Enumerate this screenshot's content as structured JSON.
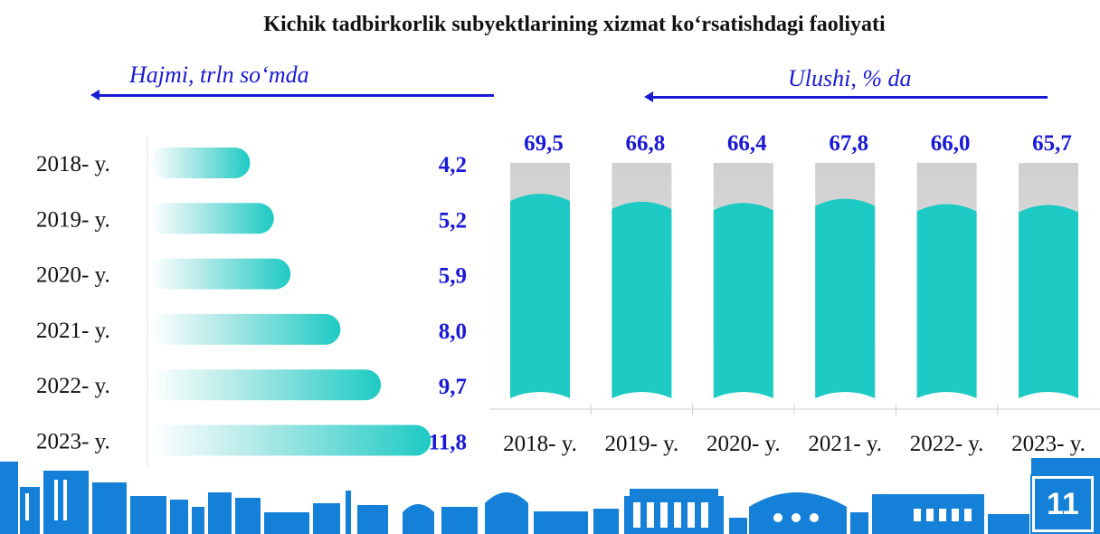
{
  "colors": {
    "teal": "#1ecac4",
    "gray": "#d9d9d9",
    "blue": "#1a1ad6",
    "city": "#1580d8"
  },
  "chart_data": [
    {
      "type": "bar",
      "orientation": "horizontal",
      "title": "Kichik tadbirkorlik subyektlarining xizmat ko‘rsatishdagi faoliyati",
      "xlabel": "Hajmi, trln so‘mda",
      "categories": [
        "2018- y.",
        "2019- y.",
        "2020- y.",
        "2021- y.",
        "2022- y.",
        "2023- y."
      ],
      "values": [
        4.2,
        5.2,
        5.9,
        8.0,
        9.7,
        11.8
      ],
      "value_labels": [
        "4,2",
        "5,2",
        "5,9",
        "8,0",
        "9,7",
        "11,8"
      ],
      "xlim": [
        0,
        12
      ]
    },
    {
      "type": "bar",
      "orientation": "vertical",
      "ylabel": "Ulushi, % da",
      "categories": [
        "2018- y.",
        "2019- y.",
        "2020- y.",
        "2021- y.",
        "2022- y.",
        "2023- y."
      ],
      "values": [
        69.5,
        66.8,
        66.4,
        67.8,
        66.0,
        65.7
      ],
      "value_labels": [
        "69,5",
        "66,8",
        "66,4",
        "67,8",
        "66,0",
        "65,7"
      ],
      "ylim": [
        0,
        80
      ]
    }
  ],
  "page": {
    "number": "11"
  }
}
